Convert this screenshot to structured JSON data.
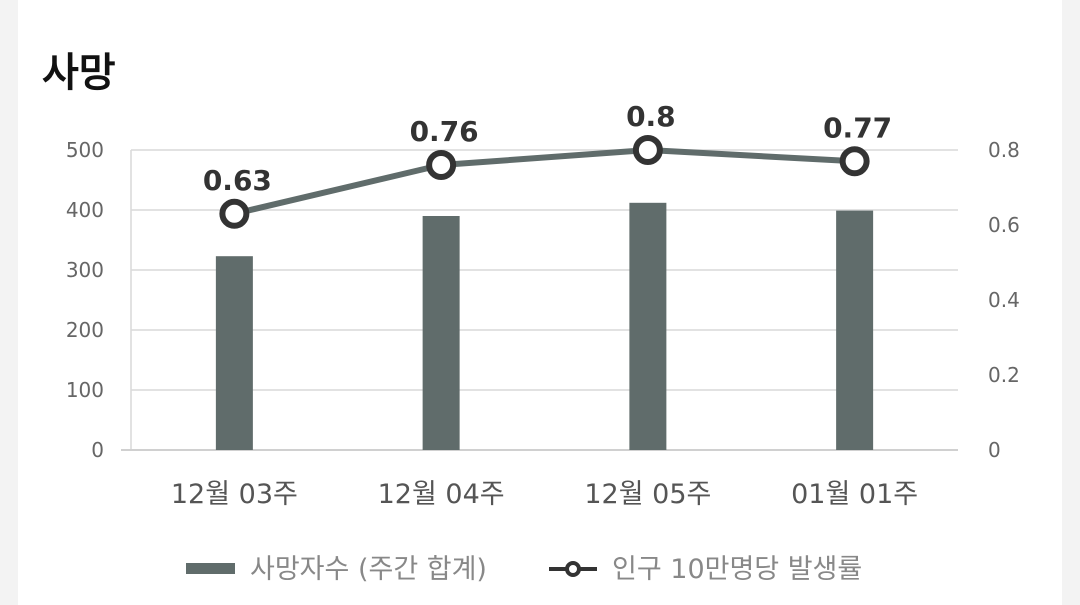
{
  "title": "사망",
  "chart_data": {
    "type": "bar",
    "categories": [
      "12월 03주",
      "12월 04주",
      "12월 05주",
      "01월 01주"
    ],
    "series": [
      {
        "name": "사망자수 (주간 합계)",
        "type": "bar",
        "axis": "left",
        "values": [
          323,
          390,
          412,
          399
        ],
        "color": "#606c6b"
      },
      {
        "name": "인구 10만명당 발생률",
        "type": "line",
        "axis": "right",
        "values": [
          0.63,
          0.76,
          0.8,
          0.77
        ],
        "color": "#606c6b"
      }
    ],
    "y_left": {
      "ylim": [
        0,
        500
      ],
      "ticks": [
        "0",
        "100",
        "200",
        "300",
        "400",
        "500"
      ]
    },
    "y_right": {
      "ylim": [
        0,
        0.8
      ],
      "ticks": [
        "0",
        "0.2",
        "0.4",
        "0.6",
        "0.8"
      ]
    },
    "grid": true,
    "legend": "bottom"
  }
}
